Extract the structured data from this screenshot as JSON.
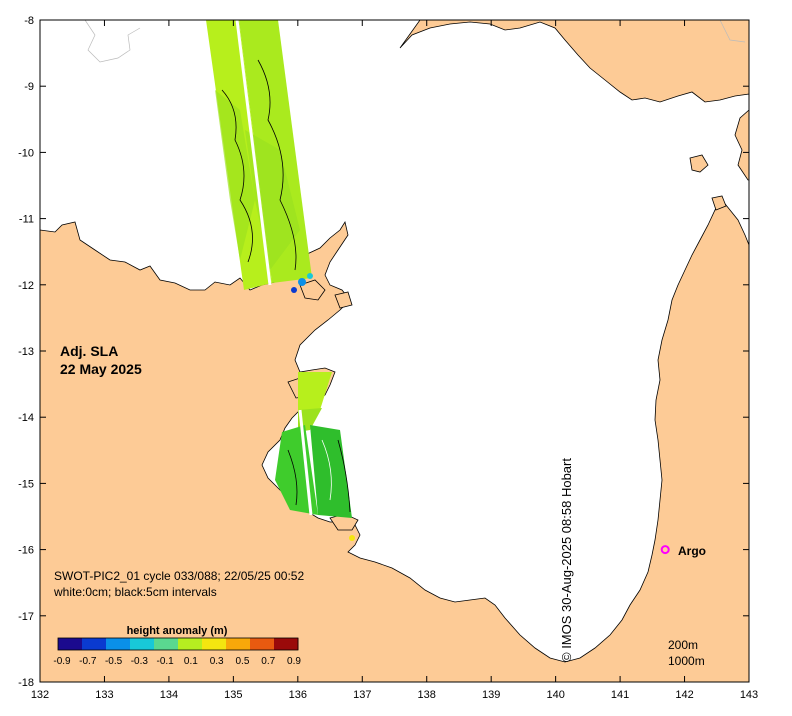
{
  "map": {
    "title": "Adj. SLA",
    "date": "22 May 2025",
    "lon_range": [
      132,
      143
    ],
    "lat_range": [
      -18,
      -8
    ],
    "x_ticks": [
      "132",
      "133",
      "134",
      "135",
      "136",
      "137",
      "138",
      "139",
      "140",
      "141",
      "142",
      "143"
    ],
    "y_ticks": [
      "-8",
      "-9",
      "-10",
      "-11",
      "-12",
      "-13",
      "-14",
      "-15",
      "-16",
      "-17",
      "-18"
    ],
    "land_color": "#fdcb96",
    "sea_color": "#ffffff",
    "swath_colors": [
      "#b7ef1c",
      "#9ce21e",
      "#3fcc2c",
      "#2fbe2c"
    ]
  },
  "info": {
    "line1": "SWOT-PIC2_01 cycle 033/088; 22/05/25 00:52",
    "line2": "white:0cm; black:5cm intervals"
  },
  "colorbar": {
    "title": "height anomaly (m)",
    "ticks": [
      "-0.9",
      "-0.7",
      "-0.5",
      "-0.3",
      "-0.1",
      "0.1",
      "0.3",
      "0.5",
      "0.7",
      "0.9"
    ],
    "colors": [
      "#1b0a8e",
      "#0a3ad0",
      "#0a90e8",
      "#18c8d8",
      "#5ad890",
      "#b6ee20",
      "#f4e610",
      "#f8a80a",
      "#e85a10",
      "#9a0a0a"
    ]
  },
  "argo": {
    "label": "Argo",
    "lon": 141.7,
    "lat": -16.0,
    "color": "#ff00ff"
  },
  "legend": {
    "depth1": "200m",
    "depth2": "1000m"
  },
  "credit": "© IMOS 30-Aug-2025 08:58 Hobart"
}
